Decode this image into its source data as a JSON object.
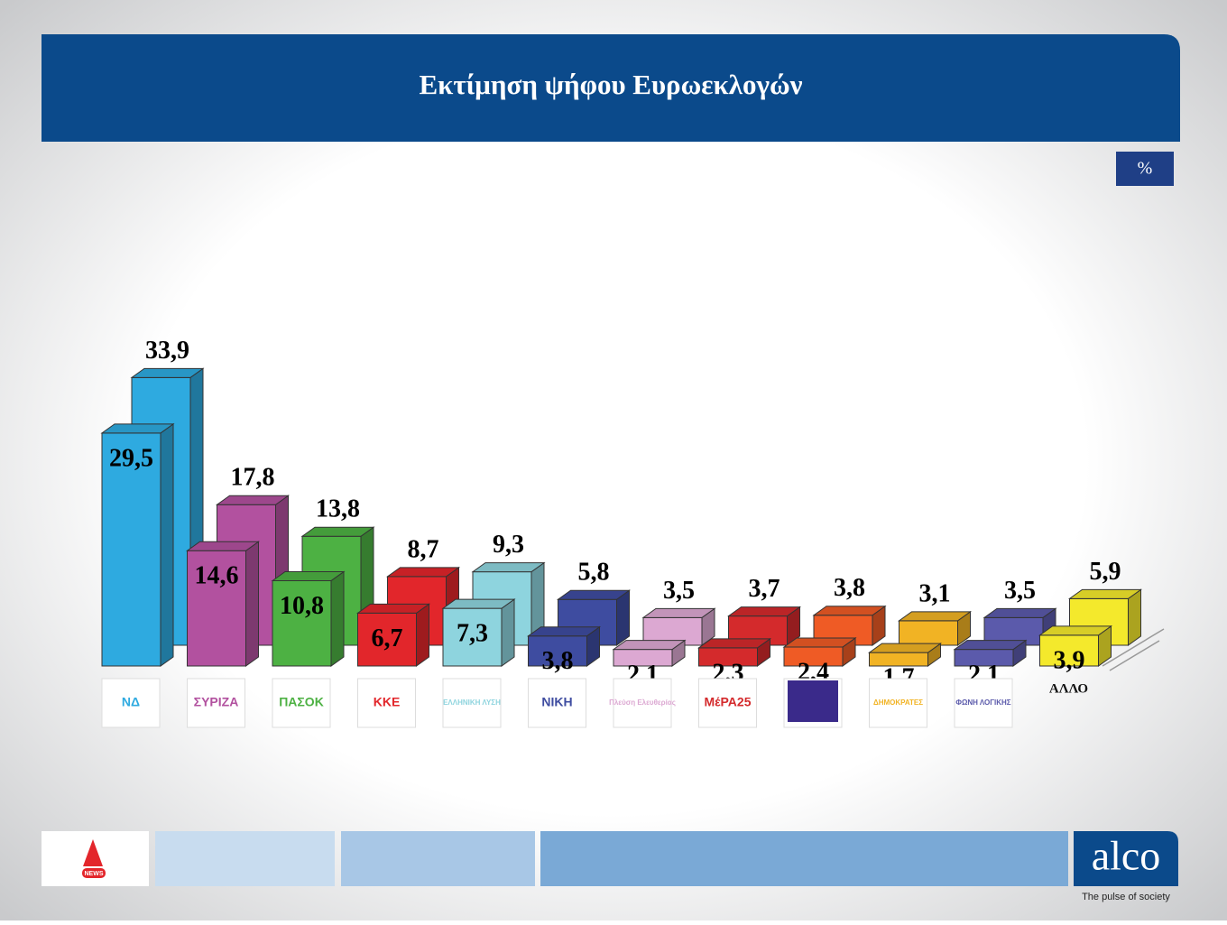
{
  "chart_data": {
    "type": "bar3d",
    "title": "Εκτίμηση ψήφου Ευρωεκλογών",
    "unit": "%",
    "categories": [
      "ΝΔ",
      "ΣΥΡΙΖΑ",
      "ΠΑΣΟΚ",
      "ΚΚΕ",
      "ΕΛΛΗΝΙΚΗ ΛΥΣΗ",
      "ΝΙΚΗ",
      "Πλεύση Ελευθερίας",
      "ΜέΡΑ25",
      null,
      "ΔΗΜΟΚΡΑΤΕΣ",
      "ΦΩΝΗ ΛΟΓΙΚΗΣ",
      "ΑΛΛΟ"
    ],
    "colors": [
      "#2eaae0",
      "#b2519f",
      "#4db143",
      "#e2262b",
      "#8ed4de",
      "#3e4ca0",
      "#dca8d2",
      "#d42a2c",
      "#ef5b25",
      "#f1b324",
      "#5b5aab",
      "#f4e92c"
    ],
    "series": [
      {
        "values": [
          33.9,
          17.8,
          13.8,
          8.7,
          9.3,
          5.8,
          3.5,
          3.7,
          3.8,
          3.1,
          3.5,
          5.9
        ],
        "value_labels": [
          "33,9",
          "17,8",
          "13,8",
          "8,7",
          "9,3",
          "5,8",
          "3,5",
          "3,7",
          "3,8",
          "3,1",
          "3,5",
          "5,9"
        ]
      },
      {
        "values": [
          29.5,
          14.6,
          10.8,
          6.7,
          7.3,
          3.8,
          2.1,
          2.3,
          2.4,
          1.7,
          2.1,
          3.9
        ],
        "value_labels": [
          "29,5",
          "14,6",
          "10,8",
          "6,7",
          "7,3",
          "3,8",
          "2,1",
          "2,3",
          "2,4",
          "1,7",
          "2,1",
          "3,9"
        ]
      }
    ]
  },
  "footer": {
    "news_logo": "NEWS",
    "brand": "alco",
    "tagline": "The pulse of society"
  }
}
